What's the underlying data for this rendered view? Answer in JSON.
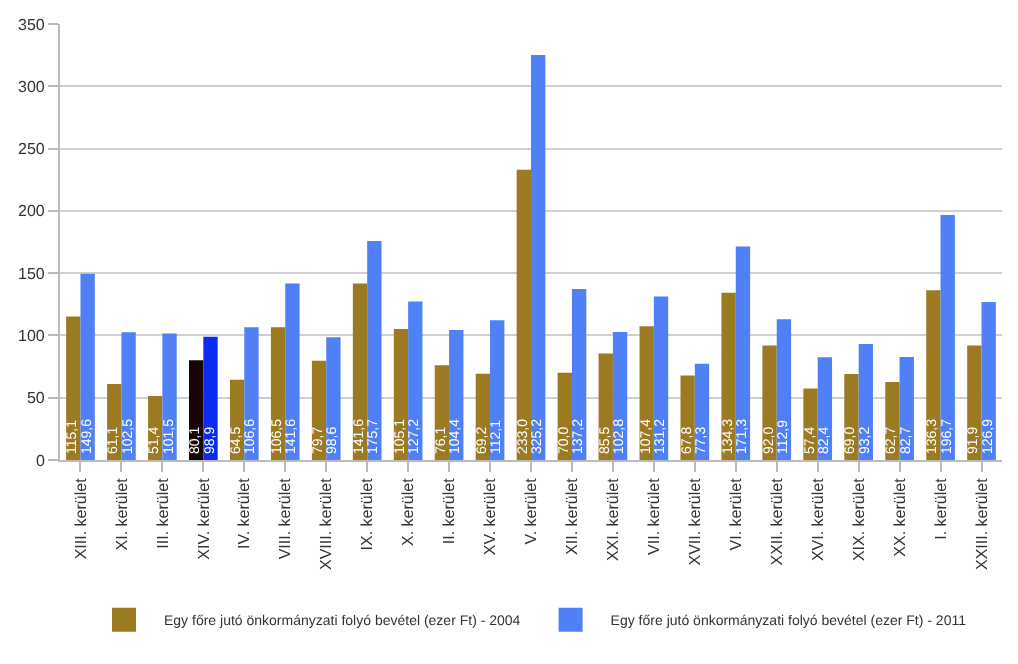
{
  "chart_data": {
    "type": "bar",
    "categories": [
      "XIII. kerület",
      "XI. kerület",
      "III. kerület",
      "XIV. kerület",
      "IV. kerület",
      "VIII. kerület",
      "XVIII. kerület",
      "IX. kerület",
      "X. kerület",
      "II. kerület",
      "XV. kerület",
      "V. kerület",
      "XII. kerület",
      "XXI. kerület",
      "VII. kerület",
      "XVII. kerület",
      "VI. kerület",
      "XXII. kerület",
      "XVI. kerület",
      "XIX. kerület",
      "XX. kerület",
      "I. kerület",
      "XXIII. kerület"
    ],
    "series": [
      {
        "name": "Egy főre jutó önkormányzati folyó bevétel (ezer Ft) - 2004",
        "colors": [
          "#9c7a22",
          "#9c7a22",
          "#9c7a22",
          "#1a0505",
          "#9c7a22",
          "#9c7a22",
          "#9c7a22",
          "#9c7a22",
          "#9c7a22",
          "#9c7a22",
          "#9c7a22",
          "#9c7a22",
          "#9c7a22",
          "#9c7a22",
          "#9c7a22",
          "#9c7a22",
          "#9c7a22",
          "#9c7a22",
          "#9c7a22",
          "#9c7a22",
          "#9c7a22",
          "#9c7a22",
          "#9c7a22"
        ],
        "values": [
          115.1,
          61.1,
          51.4,
          80.1,
          64.5,
          106.5,
          79.7,
          141.6,
          105.1,
          76.1,
          69.2,
          233.0,
          70.0,
          85.5,
          107.4,
          67.8,
          134.3,
          92.0,
          57.4,
          69.0,
          62.7,
          136.3,
          91.9
        ],
        "value_labels": [
          "115,1",
          "61,1",
          "51,4",
          "80,1",
          "64,5",
          "106,5",
          "79,7",
          "141,6",
          "105,1",
          "76,1",
          "69,2",
          "233,0",
          "70,0",
          "85,5",
          "107,4",
          "67,8",
          "134,3",
          "92,0",
          "57,4",
          "69,0",
          "62,7",
          "136,3",
          "91,9"
        ]
      },
      {
        "name": "Egy főre jutó önkormányzati folyó bevétel (ezer Ft) - 2011",
        "colors": [
          "#4f80f5",
          "#4f80f5",
          "#4f80f5",
          "#0a2cf0",
          "#4f80f5",
          "#4f80f5",
          "#4f80f5",
          "#4f80f5",
          "#4f80f5",
          "#4f80f5",
          "#4f80f5",
          "#4f80f5",
          "#4f80f5",
          "#4f80f5",
          "#4f80f5",
          "#4f80f5",
          "#4f80f5",
          "#4f80f5",
          "#4f80f5",
          "#4f80f5",
          "#4f80f5",
          "#4f80f5",
          "#4f80f5"
        ],
        "values": [
          149.6,
          102.5,
          101.5,
          98.9,
          106.6,
          141.6,
          98.6,
          175.7,
          127.2,
          104.4,
          112.1,
          325.2,
          137.2,
          102.8,
          131.2,
          77.3,
          171.3,
          112.9,
          82.4,
          93.2,
          82.7,
          196.7,
          126.9
        ],
        "value_labels": [
          "149,6",
          "102,5",
          "101,5",
          "98,9",
          "106,6",
          "141,6",
          "98,6",
          "175,7",
          "127,2",
          "104,4",
          "112,1",
          "325,2",
          "137,2",
          "102,8",
          "131,2",
          "77,3",
          "171,3",
          "112,9",
          "82,4",
          "93,2",
          "82,7",
          "196,7",
          "126,9"
        ]
      }
    ],
    "ylim": [
      0,
      350
    ],
    "yticks": [
      0,
      50,
      100,
      150,
      200,
      250,
      300,
      350
    ],
    "grid": "y",
    "legend": "bottom"
  }
}
